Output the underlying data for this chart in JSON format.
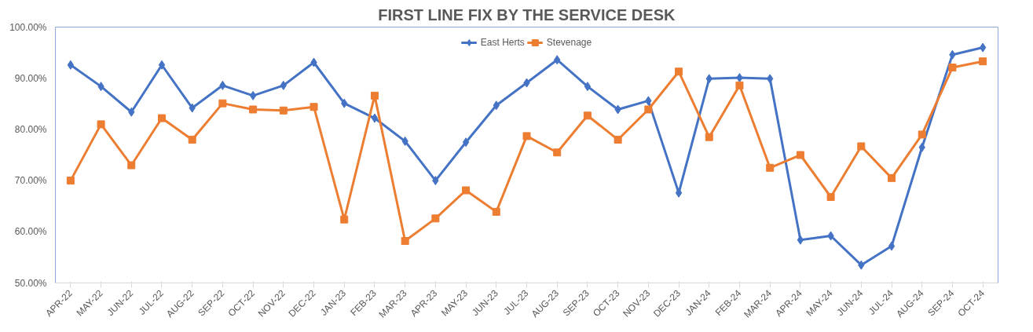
{
  "chart_data": {
    "type": "line",
    "title": "FIRST LINE FIX BY THE SERVICE DESK",
    "categories": [
      "APR-22",
      "MAY-22",
      "JUN-22",
      "JUL-22",
      "AUG-22",
      "SEP-22",
      "OCT-22",
      "NOV-22",
      "DEC-22",
      "JAN-23",
      "FEB-23",
      "MAR-23",
      "APR-23",
      "MAY-23",
      "JUN-23",
      "JUL-23",
      "AUG-23",
      "SEP-23",
      "OCT-23",
      "NOV-23",
      "DEC-23",
      "JAN-24",
      "FEB-24",
      "MAR-24",
      "APR-24",
      "MAY-24",
      "JUN-24",
      "JUL-24",
      "AUG-24",
      "SEP-24",
      "OCT-24"
    ],
    "series": [
      {
        "name": "East Herts",
        "color": "#4472c4",
        "marker": "diamond",
        "values": [
          92.6,
          88.4,
          83.4,
          92.6,
          84.2,
          88.6,
          86.6,
          88.6,
          93.1,
          85.1,
          82.2,
          77.7,
          70.0,
          77.5,
          84.7,
          89.1,
          93.6,
          88.4,
          83.9,
          85.6,
          67.6,
          89.9,
          90.1,
          89.9,
          58.4,
          59.2,
          53.5,
          57.2,
          76.5,
          94.6,
          96.0
        ]
      },
      {
        "name": "Stevenage",
        "color": "#ed7d31",
        "marker": "square",
        "values": [
          70.0,
          81.0,
          73.0,
          82.2,
          78.0,
          85.1,
          83.9,
          83.7,
          84.4,
          62.4,
          86.6,
          58.2,
          62.6,
          68.1,
          63.9,
          78.7,
          75.5,
          82.7,
          78.0,
          83.9,
          91.3,
          78.5,
          88.6,
          72.5,
          75.0,
          66.8,
          76.7,
          70.5,
          79.0,
          92.1,
          93.3
        ]
      }
    ],
    "ylim": [
      50,
      100
    ],
    "yticks": [
      {
        "value": 50,
        "label": "50.00%"
      },
      {
        "value": 60,
        "label": "60.00%"
      },
      {
        "value": 70,
        "label": "70.00%"
      },
      {
        "value": 80,
        "label": "80.00%"
      },
      {
        "value": 90,
        "label": "90.00%"
      },
      {
        "value": 100,
        "label": "100.00%"
      }
    ],
    "grid": false,
    "legend": "top",
    "line_style": "solid"
  }
}
